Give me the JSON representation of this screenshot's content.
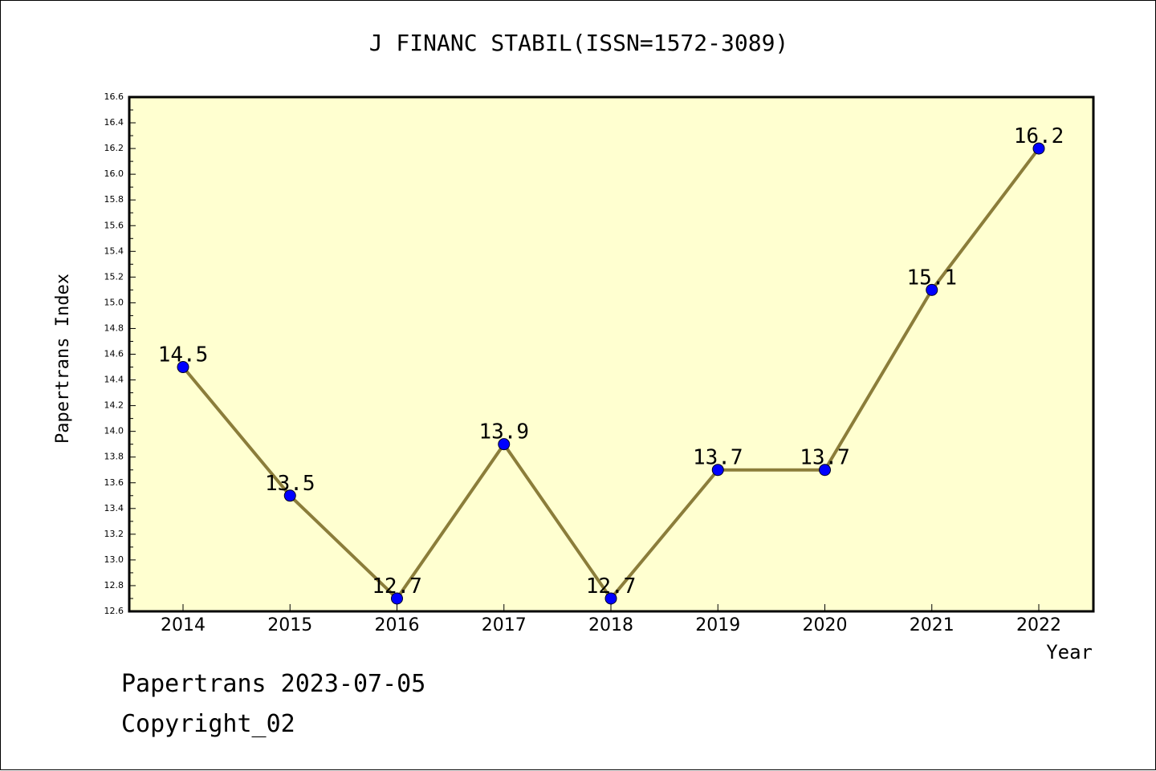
{
  "chart_data": {
    "type": "line",
    "title": "J FINANC STABIL(ISSN=1572-3089)",
    "xlabel": "Year",
    "ylabel": "Papertrans Index",
    "categories": [
      "2014",
      "2015",
      "2016",
      "2017",
      "2018",
      "2019",
      "2020",
      "2021",
      "2022"
    ],
    "series": [
      {
        "values": [
          14.5,
          13.5,
          12.7,
          13.9,
          12.7,
          13.7,
          13.7,
          15.1,
          16.2
        ],
        "data_labels": [
          "14.5",
          "13.5",
          "12.7",
          "13.9",
          "12.7",
          "13.7",
          "13.7",
          "15.1",
          "16.2"
        ]
      }
    ],
    "ylim": [
      12.6,
      16.6
    ],
    "yticks": [
      "12.6",
      "12.8",
      "13.0",
      "13.2",
      "13.4",
      "13.6",
      "13.8",
      "14.0",
      "14.2",
      "14.4",
      "14.6",
      "14.8",
      "15.0",
      "15.2",
      "15.4",
      "15.6",
      "15.8",
      "16.0",
      "16.2",
      "16.4",
      "16.6"
    ],
    "grid": false,
    "legend": "none",
    "colors": {
      "plot_background": "#ffffd0",
      "line": "#8b7d3a",
      "marker": "#0000ff",
      "axis": "#000000"
    }
  },
  "footer": {
    "date_text": "Papertrans 2023-07-05",
    "copyright_text": "Copyright_02"
  }
}
